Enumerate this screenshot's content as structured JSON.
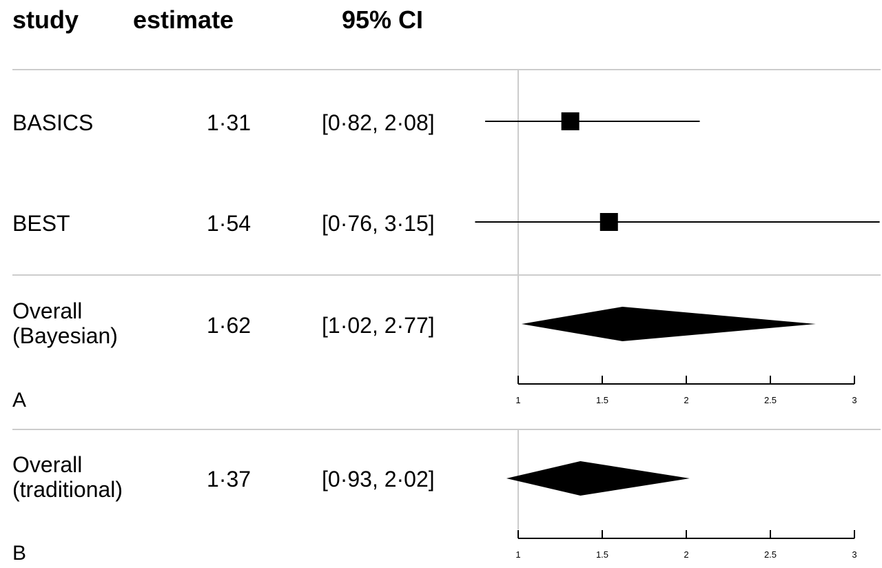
{
  "header": {
    "study": "study",
    "estimate": "estimate",
    "ci": "95% CI"
  },
  "rows": [
    {
      "study": [
        "BASICS"
      ],
      "estimate": "1·31",
      "ci": "[0·82, 2·08]"
    },
    {
      "study": [
        "BEST"
      ],
      "estimate": "1·54",
      "ci": "[0·76, 3·15]"
    },
    {
      "study": [
        "Overall",
        "(Bayesian)"
      ],
      "estimate": "1·62",
      "ci": "[1·02, 2·77]"
    },
    {
      "study": [
        "Overall",
        "(traditional)"
      ],
      "estimate": "1·37",
      "ci": "[0·93, 2·02]"
    }
  ],
  "panels": {
    "a": "A",
    "b": "B"
  },
  "chart_data": [
    {
      "type": "forest",
      "panel": "A",
      "studies": [
        {
          "name": "BASICS",
          "estimate": 1.31,
          "lower": 0.82,
          "upper": 2.08,
          "marker": "square"
        },
        {
          "name": "BEST",
          "estimate": 1.54,
          "lower": 0.76,
          "upper": 3.15,
          "marker": "square"
        }
      ],
      "overall": {
        "name": "Overall (Bayesian)",
        "estimate": 1.62,
        "lower": 1.02,
        "upper": 2.77,
        "marker": "diamond"
      },
      "xlim": [
        1,
        3
      ],
      "ticks": [
        "1",
        "1.5",
        "2",
        "2.5",
        "3"
      ],
      "reference_line": 1
    },
    {
      "type": "forest",
      "panel": "B",
      "overall": {
        "name": "Overall (traditional)",
        "estimate": 1.37,
        "lower": 0.93,
        "upper": 2.02,
        "marker": "diamond"
      },
      "xlim": [
        1,
        3
      ],
      "ticks": [
        "1",
        "1.5",
        "2",
        "2.5",
        "3"
      ],
      "reference_line": 1
    }
  ]
}
